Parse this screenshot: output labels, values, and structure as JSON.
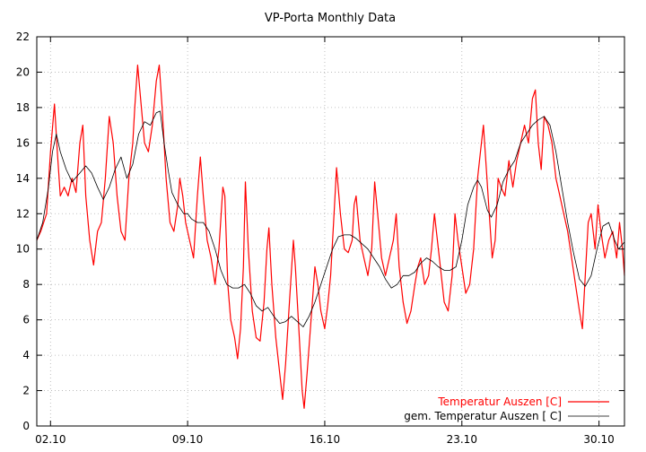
{
  "chart_data": {
    "type": "line",
    "title": "VP-Porta Monthly Data",
    "xlabel": "",
    "ylabel": "",
    "x_unit": "day of October",
    "xlim": [
      1.3,
      31.3
    ],
    "ylim": [
      0,
      22
    ],
    "y_ticks": [
      0,
      2,
      4,
      6,
      8,
      10,
      12,
      14,
      16,
      18,
      20,
      22
    ],
    "x_ticks": [
      {
        "x": 2,
        "label": "02.10"
      },
      {
        "x": 9,
        "label": "09.10"
      },
      {
        "x": 16,
        "label": "16.10"
      },
      {
        "x": 23,
        "label": "23.10"
      },
      {
        "x": 30,
        "label": "30.10"
      }
    ],
    "grid": true,
    "legend_position": "bottom-right",
    "series": [
      {
        "name": "Temperatur Auszen [C]",
        "color": "#ff0000",
        "points": [
          [
            1.3,
            10.5
          ],
          [
            1.5,
            11.0
          ],
          [
            1.8,
            12.0
          ],
          [
            2.0,
            15.5
          ],
          [
            2.2,
            18.2
          ],
          [
            2.35,
            15.5
          ],
          [
            2.5,
            13.0
          ],
          [
            2.7,
            13.5
          ],
          [
            2.9,
            13.0
          ],
          [
            3.1,
            14.0
          ],
          [
            3.3,
            13.2
          ],
          [
            3.5,
            16.0
          ],
          [
            3.65,
            17.0
          ],
          [
            3.8,
            13.0
          ],
          [
            4.0,
            10.5
          ],
          [
            4.2,
            9.1
          ],
          [
            4.4,
            11.0
          ],
          [
            4.6,
            11.5
          ],
          [
            4.8,
            14.0
          ],
          [
            5.0,
            17.5
          ],
          [
            5.2,
            16.0
          ],
          [
            5.4,
            13.0
          ],
          [
            5.6,
            11.0
          ],
          [
            5.8,
            10.5
          ],
          [
            6.0,
            14.0
          ],
          [
            6.2,
            16.0
          ],
          [
            6.3,
            18.0
          ],
          [
            6.45,
            20.4
          ],
          [
            6.6,
            18.5
          ],
          [
            6.8,
            16.0
          ],
          [
            7.0,
            15.5
          ],
          [
            7.2,
            17.0
          ],
          [
            7.4,
            19.5
          ],
          [
            7.55,
            20.4
          ],
          [
            7.7,
            18.0
          ],
          [
            7.9,
            14.0
          ],
          [
            8.1,
            11.5
          ],
          [
            8.3,
            11.0
          ],
          [
            8.5,
            12.5
          ],
          [
            8.6,
            14.0
          ],
          [
            8.75,
            13.0
          ],
          [
            8.9,
            11.5
          ],
          [
            9.1,
            10.5
          ],
          [
            9.3,
            9.5
          ],
          [
            9.5,
            13.0
          ],
          [
            9.65,
            15.2
          ],
          [
            9.8,
            13.0
          ],
          [
            10.0,
            10.5
          ],
          [
            10.2,
            9.5
          ],
          [
            10.4,
            8.0
          ],
          [
            10.6,
            10.0
          ],
          [
            10.8,
            13.5
          ],
          [
            10.9,
            13.0
          ],
          [
            11.05,
            8.0
          ],
          [
            11.2,
            6.0
          ],
          [
            11.4,
            5.0
          ],
          [
            11.55,
            3.8
          ],
          [
            11.7,
            5.5
          ],
          [
            11.85,
            9.0
          ],
          [
            11.95,
            13.8
          ],
          [
            12.1,
            10.0
          ],
          [
            12.3,
            6.5
          ],
          [
            12.5,
            5.0
          ],
          [
            12.7,
            4.8
          ],
          [
            12.9,
            7.0
          ],
          [
            13.05,
            10.0
          ],
          [
            13.15,
            11.2
          ],
          [
            13.3,
            8.0
          ],
          [
            13.5,
            5.0
          ],
          [
            13.7,
            3.0
          ],
          [
            13.85,
            1.5
          ],
          [
            14.0,
            3.5
          ],
          [
            14.2,
            7.0
          ],
          [
            14.4,
            10.5
          ],
          [
            14.5,
            9.0
          ],
          [
            14.7,
            5.0
          ],
          [
            14.85,
            2.0
          ],
          [
            14.95,
            1.0
          ],
          [
            15.1,
            3.0
          ],
          [
            15.3,
            6.0
          ],
          [
            15.5,
            9.0
          ],
          [
            15.65,
            8.0
          ],
          [
            15.8,
            6.5
          ],
          [
            16.0,
            5.5
          ],
          [
            16.15,
            6.8
          ],
          [
            16.3,
            8.5
          ],
          [
            16.45,
            11.5
          ],
          [
            16.6,
            14.6
          ],
          [
            16.8,
            12.0
          ],
          [
            17.0,
            10.0
          ],
          [
            17.2,
            9.8
          ],
          [
            17.4,
            10.5
          ],
          [
            17.5,
            12.5
          ],
          [
            17.6,
            13.0
          ],
          [
            17.8,
            10.5
          ],
          [
            18.0,
            9.5
          ],
          [
            18.2,
            8.5
          ],
          [
            18.4,
            10.0
          ],
          [
            18.55,
            13.8
          ],
          [
            18.7,
            12.0
          ],
          [
            18.9,
            9.5
          ],
          [
            19.1,
            8.5
          ],
          [
            19.3,
            9.5
          ],
          [
            19.5,
            10.5
          ],
          [
            19.65,
            12.0
          ],
          [
            19.8,
            9.0
          ],
          [
            20.0,
            7.0
          ],
          [
            20.2,
            5.8
          ],
          [
            20.4,
            6.5
          ],
          [
            20.6,
            8.0
          ],
          [
            20.75,
            9.0
          ],
          [
            20.9,
            9.5
          ],
          [
            21.1,
            8.0
          ],
          [
            21.3,
            8.5
          ],
          [
            21.45,
            10.0
          ],
          [
            21.6,
            12.0
          ],
          [
            21.75,
            10.5
          ],
          [
            21.9,
            9.0
          ],
          [
            22.1,
            7.0
          ],
          [
            22.3,
            6.5
          ],
          [
            22.5,
            8.5
          ],
          [
            22.65,
            12.0
          ],
          [
            22.8,
            10.5
          ],
          [
            23.0,
            9.0
          ],
          [
            23.2,
            7.5
          ],
          [
            23.4,
            8.0
          ],
          [
            23.6,
            10.0
          ],
          [
            23.8,
            14.0
          ],
          [
            23.95,
            15.5
          ],
          [
            24.1,
            17.0
          ],
          [
            24.25,
            14.5
          ],
          [
            24.4,
            12.0
          ],
          [
            24.55,
            9.5
          ],
          [
            24.7,
            10.5
          ],
          [
            24.85,
            14.0
          ],
          [
            25.0,
            13.5
          ],
          [
            25.2,
            13.0
          ],
          [
            25.4,
            15.0
          ],
          [
            25.6,
            13.5
          ],
          [
            25.8,
            15.0
          ],
          [
            26.0,
            16.0
          ],
          [
            26.2,
            17.0
          ],
          [
            26.4,
            16.0
          ],
          [
            26.6,
            18.5
          ],
          [
            26.75,
            19.0
          ],
          [
            26.9,
            16.0
          ],
          [
            27.05,
            14.5
          ],
          [
            27.2,
            17.5
          ],
          [
            27.4,
            17.0
          ],
          [
            27.6,
            16.0
          ],
          [
            27.8,
            14.0
          ],
          [
            28.0,
            13.0
          ],
          [
            28.2,
            12.0
          ],
          [
            28.4,
            11.0
          ],
          [
            28.6,
            9.5
          ],
          [
            28.8,
            8.0
          ],
          [
            29.0,
            6.5
          ],
          [
            29.15,
            5.5
          ],
          [
            29.3,
            8.5
          ],
          [
            29.45,
            11.5
          ],
          [
            29.6,
            12.0
          ],
          [
            29.8,
            10.0
          ],
          [
            29.95,
            12.5
          ],
          [
            30.1,
            11.0
          ],
          [
            30.3,
            9.5
          ],
          [
            30.5,
            10.5
          ],
          [
            30.7,
            11.0
          ],
          [
            30.9,
            9.5
          ],
          [
            31.05,
            11.5
          ],
          [
            31.2,
            10.0
          ],
          [
            31.3,
            8.5
          ]
        ]
      },
      {
        "name": "gem. Temperatur Auszen [ C]",
        "color": "#000000",
        "points": [
          [
            1.3,
            10.5
          ],
          [
            1.6,
            11.5
          ],
          [
            1.9,
            13.5
          ],
          [
            2.1,
            15.5
          ],
          [
            2.3,
            16.5
          ],
          [
            2.5,
            15.5
          ],
          [
            2.8,
            14.5
          ],
          [
            3.1,
            13.8
          ],
          [
            3.5,
            14.3
          ],
          [
            3.8,
            14.7
          ],
          [
            4.1,
            14.3
          ],
          [
            4.4,
            13.5
          ],
          [
            4.7,
            12.8
          ],
          [
            5.0,
            13.5
          ],
          [
            5.3,
            14.5
          ],
          [
            5.6,
            15.2
          ],
          [
            5.9,
            14.0
          ],
          [
            6.2,
            14.8
          ],
          [
            6.5,
            16.5
          ],
          [
            6.8,
            17.2
          ],
          [
            7.1,
            17.0
          ],
          [
            7.4,
            17.7
          ],
          [
            7.6,
            17.8
          ],
          [
            7.8,
            16.0
          ],
          [
            8.0,
            14.5
          ],
          [
            8.2,
            13.2
          ],
          [
            8.5,
            12.5
          ],
          [
            8.8,
            12.0
          ],
          [
            9.0,
            12.0
          ],
          [
            9.2,
            11.7
          ],
          [
            9.5,
            11.5
          ],
          [
            9.8,
            11.5
          ],
          [
            10.1,
            11.0
          ],
          [
            10.4,
            10.0
          ],
          [
            10.7,
            8.8
          ],
          [
            11.0,
            8.0
          ],
          [
            11.3,
            7.8
          ],
          [
            11.6,
            7.8
          ],
          [
            11.9,
            8.0
          ],
          [
            12.2,
            7.5
          ],
          [
            12.5,
            6.8
          ],
          [
            12.8,
            6.5
          ],
          [
            13.1,
            6.7
          ],
          [
            13.4,
            6.2
          ],
          [
            13.7,
            5.8
          ],
          [
            14.0,
            5.9
          ],
          [
            14.3,
            6.2
          ],
          [
            14.6,
            5.9
          ],
          [
            14.9,
            5.6
          ],
          [
            15.2,
            6.2
          ],
          [
            15.5,
            7.0
          ],
          [
            15.8,
            8.0
          ],
          [
            16.1,
            9.0
          ],
          [
            16.4,
            10.0
          ],
          [
            16.7,
            10.7
          ],
          [
            17.0,
            10.8
          ],
          [
            17.3,
            10.8
          ],
          [
            17.6,
            10.6
          ],
          [
            17.9,
            10.3
          ],
          [
            18.2,
            10.0
          ],
          [
            18.5,
            9.5
          ],
          [
            18.8,
            9.0
          ],
          [
            19.1,
            8.3
          ],
          [
            19.4,
            7.8
          ],
          [
            19.7,
            8.0
          ],
          [
            20.0,
            8.5
          ],
          [
            20.3,
            8.5
          ],
          [
            20.6,
            8.7
          ],
          [
            20.9,
            9.2
          ],
          [
            21.2,
            9.5
          ],
          [
            21.5,
            9.3
          ],
          [
            21.8,
            9.0
          ],
          [
            22.1,
            8.8
          ],
          [
            22.4,
            8.8
          ],
          [
            22.7,
            9.0
          ],
          [
            23.0,
            10.5
          ],
          [
            23.3,
            12.5
          ],
          [
            23.6,
            13.5
          ],
          [
            23.8,
            13.9
          ],
          [
            24.0,
            13.5
          ],
          [
            24.3,
            12.2
          ],
          [
            24.5,
            11.8
          ],
          [
            24.8,
            12.5
          ],
          [
            25.1,
            13.8
          ],
          [
            25.4,
            14.5
          ],
          [
            25.7,
            15.0
          ],
          [
            26.0,
            16.0
          ],
          [
            26.3,
            16.5
          ],
          [
            26.6,
            17.0
          ],
          [
            26.9,
            17.3
          ],
          [
            27.2,
            17.5
          ],
          [
            27.5,
            17.0
          ],
          [
            27.8,
            15.5
          ],
          [
            28.1,
            13.5
          ],
          [
            28.4,
            11.5
          ],
          [
            28.7,
            9.8
          ],
          [
            29.0,
            8.3
          ],
          [
            29.3,
            7.9
          ],
          [
            29.6,
            8.5
          ],
          [
            29.9,
            10.0
          ],
          [
            30.2,
            11.3
          ],
          [
            30.5,
            11.5
          ],
          [
            30.8,
            10.5
          ],
          [
            31.0,
            10.0
          ],
          [
            31.3,
            10.4
          ]
        ]
      }
    ]
  }
}
